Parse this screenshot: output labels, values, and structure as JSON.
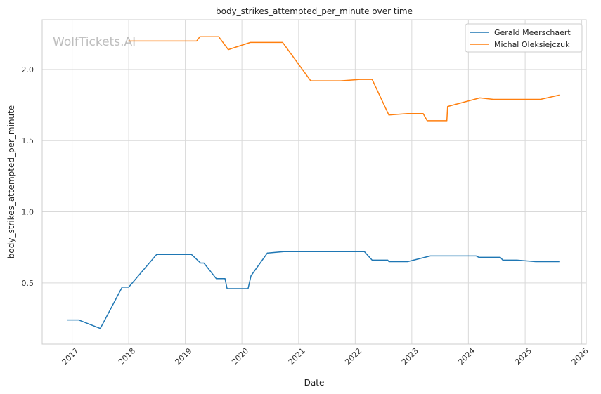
{
  "chart_data": {
    "type": "line",
    "title": "body_strikes_attempted_per_minute over time",
    "xlabel": "Date",
    "ylabel": "body_strikes_attempted_per_minute",
    "watermark": "WolfTickets.AI",
    "x_ticks": [
      "2017",
      "2018",
      "2019",
      "2020",
      "2021",
      "2022",
      "2023",
      "2024",
      "2025",
      "2026"
    ],
    "y_ticks": [
      "0.5",
      "1.0",
      "1.5",
      "2.0"
    ],
    "xlim": [
      "2016-06-22",
      "2026-01-30"
    ],
    "ylim": [
      0.07,
      2.35
    ],
    "grid": true,
    "legend_position": "top-right",
    "series": [
      {
        "name": "Gerald Meerschaert",
        "color": "#1f77b4",
        "points": [
          [
            "2016-12-01",
            0.24
          ],
          [
            "2017-02-12",
            0.24
          ],
          [
            "2017-07-02",
            0.18
          ],
          [
            "2017-11-20",
            0.47
          ],
          [
            "2018-01-01",
            0.47
          ],
          [
            "2018-06-30",
            0.7
          ],
          [
            "2019-02-10",
            0.7
          ],
          [
            "2019-04-10",
            0.64
          ],
          [
            "2019-05-01",
            0.64
          ],
          [
            "2019-07-20",
            0.53
          ],
          [
            "2019-09-14",
            0.53
          ],
          [
            "2019-09-28",
            0.46
          ],
          [
            "2020-02-10",
            0.46
          ],
          [
            "2020-02-29",
            0.55
          ],
          [
            "2020-06-13",
            0.71
          ],
          [
            "2020-09-27",
            0.72
          ],
          [
            "2021-03-20",
            0.72
          ],
          [
            "2021-09-25",
            0.72
          ],
          [
            "2022-03-01",
            0.72
          ],
          [
            "2022-04-20",
            0.66
          ],
          [
            "2022-07-30",
            0.66
          ],
          [
            "2022-08-06",
            0.65
          ],
          [
            "2022-12-05",
            0.65
          ],
          [
            "2023-05-01",
            0.69
          ],
          [
            "2024-02-20",
            0.69
          ],
          [
            "2024-03-09",
            0.68
          ],
          [
            "2024-07-25",
            0.68
          ],
          [
            "2024-08-10",
            0.66
          ],
          [
            "2024-11-10",
            0.66
          ],
          [
            "2025-03-10",
            0.65
          ],
          [
            "2025-08-10",
            0.65
          ]
        ]
      },
      {
        "name": "Michal Oleksiejczuk",
        "color": "#ff7f0e",
        "points": [
          [
            "2017-12-30",
            2.2
          ],
          [
            "2019-03-15",
            2.2
          ],
          [
            "2019-04-05",
            2.23
          ],
          [
            "2019-08-05",
            2.23
          ],
          [
            "2019-10-05",
            2.14
          ],
          [
            "2020-02-25",
            2.19
          ],
          [
            "2020-09-20",
            2.19
          ],
          [
            "2021-03-20",
            1.92
          ],
          [
            "2021-09-30",
            1.92
          ],
          [
            "2022-02-01",
            1.93
          ],
          [
            "2022-03-01",
            1.93
          ],
          [
            "2022-04-20",
            1.93
          ],
          [
            "2022-08-06",
            1.68
          ],
          [
            "2022-12-05",
            1.69
          ],
          [
            "2023-03-15",
            1.69
          ],
          [
            "2023-04-10",
            1.64
          ],
          [
            "2023-08-15",
            1.64
          ],
          [
            "2023-08-20",
            1.74
          ],
          [
            "2024-03-15",
            1.8
          ],
          [
            "2024-06-10",
            1.79
          ],
          [
            "2024-11-10",
            1.79
          ],
          [
            "2025-04-10",
            1.79
          ],
          [
            "2025-08-10",
            1.82
          ]
        ]
      }
    ]
  }
}
